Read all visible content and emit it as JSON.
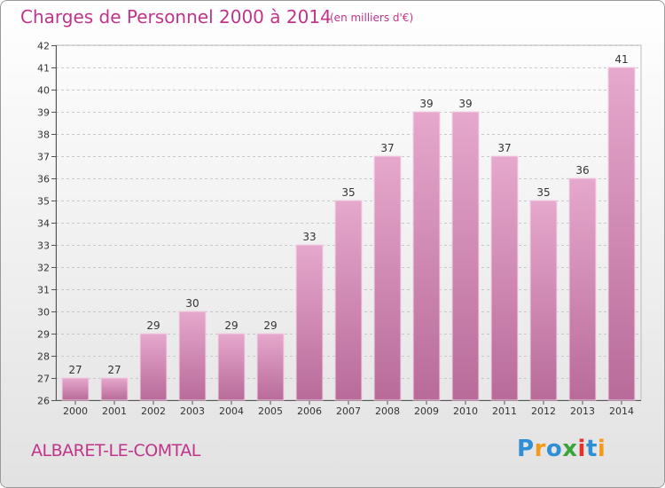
{
  "chart_data": {
    "type": "bar",
    "title": "Charges de Personnel 2000 à 2014",
    "subtitle": "(en milliers d'€)",
    "categories": [
      "2000",
      "2001",
      "2002",
      "2003",
      "2004",
      "2005",
      "2006",
      "2007",
      "2008",
      "2009",
      "2010",
      "2011",
      "2012",
      "2013",
      "2014"
    ],
    "values": [
      27,
      27,
      29,
      30,
      29,
      29,
      33,
      35,
      37,
      39,
      39,
      37,
      35,
      36,
      41
    ],
    "ylim": [
      26,
      42
    ],
    "yticks": [
      26,
      27,
      28,
      29,
      30,
      31,
      32,
      33,
      34,
      35,
      36,
      37,
      38,
      39,
      40,
      41,
      42
    ],
    "xlabel": "",
    "ylabel": "",
    "grid": true,
    "bar_color": "#d98cba"
  },
  "footer": {
    "commune": "ALBARET-LE-COMTAL",
    "logo": "Proxiti"
  },
  "colors": {
    "title": "#c0348a",
    "logo": [
      "#2e8fd6",
      "#f39a1d",
      "#2e8fd6",
      "#3aa53a",
      "#e8302a",
      "#2e8fd6",
      "#f39a1d"
    ]
  }
}
